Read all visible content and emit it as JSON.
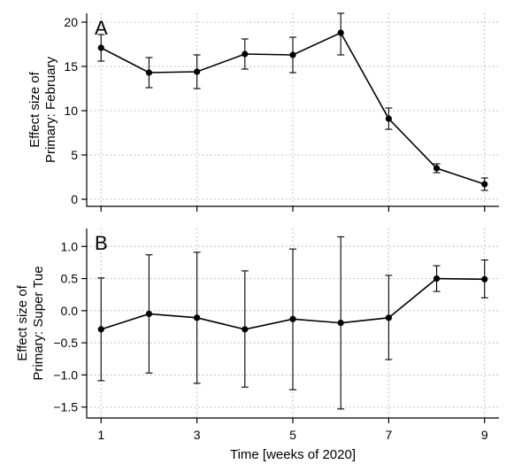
{
  "chart_data": [
    {
      "type": "line",
      "panel_label": "A",
      "ylabel": [
        "Effect size of",
        "Primary: February"
      ],
      "xlabel": "",
      "ylim": [
        -0.8,
        21
      ],
      "yticks": [
        0,
        5,
        10,
        15,
        20
      ],
      "ytick_labels": [
        "0",
        "5",
        "10",
        "15",
        "20"
      ],
      "grid": true,
      "series": [
        {
          "x": [
            1,
            2,
            3,
            4,
            5,
            6,
            7,
            8,
            9
          ],
          "values": [
            17.1,
            14.3,
            14.4,
            16.4,
            16.3,
            18.8,
            9.1,
            3.5,
            1.7
          ],
          "err_low": [
            15.6,
            12.6,
            12.5,
            14.7,
            14.3,
            16.3,
            7.9,
            3.0,
            1.0
          ],
          "err_high": [
            18.6,
            16.0,
            16.3,
            18.1,
            18.3,
            21.0,
            10.3,
            4.0,
            2.4
          ]
        }
      ]
    },
    {
      "type": "line",
      "panel_label": "B",
      "ylabel": [
        "Effect size of",
        "Primary: Super Tue"
      ],
      "xlabel": "Time [weeks of 2020]",
      "ylim": [
        -1.67,
        1.28
      ],
      "yticks": [
        -1.5,
        -1.0,
        -0.5,
        0.0,
        0.5,
        1.0
      ],
      "ytick_labels": [
        "−1.5",
        "−1.0",
        "−0.5",
        "0.0",
        "0.5",
        "1.0"
      ],
      "xlim": [
        0.7,
        9.3
      ],
      "xticks": [
        1,
        3,
        5,
        7,
        9
      ],
      "xtick_labels": [
        "1",
        "3",
        "5",
        "7",
        "9"
      ],
      "grid": true,
      "series": [
        {
          "x": [
            1,
            2,
            3,
            4,
            5,
            6,
            7,
            8,
            9
          ],
          "values": [
            -0.29,
            -0.05,
            -0.11,
            -0.29,
            -0.13,
            -0.19,
            -0.11,
            0.5,
            0.49
          ],
          "err_low": [
            -1.09,
            -0.97,
            -1.13,
            -1.19,
            -1.23,
            -1.53,
            -0.76,
            0.3,
            0.2
          ],
          "err_high": [
            0.51,
            0.87,
            0.91,
            0.62,
            0.96,
            1.15,
            0.55,
            0.7,
            0.79
          ]
        }
      ]
    }
  ]
}
